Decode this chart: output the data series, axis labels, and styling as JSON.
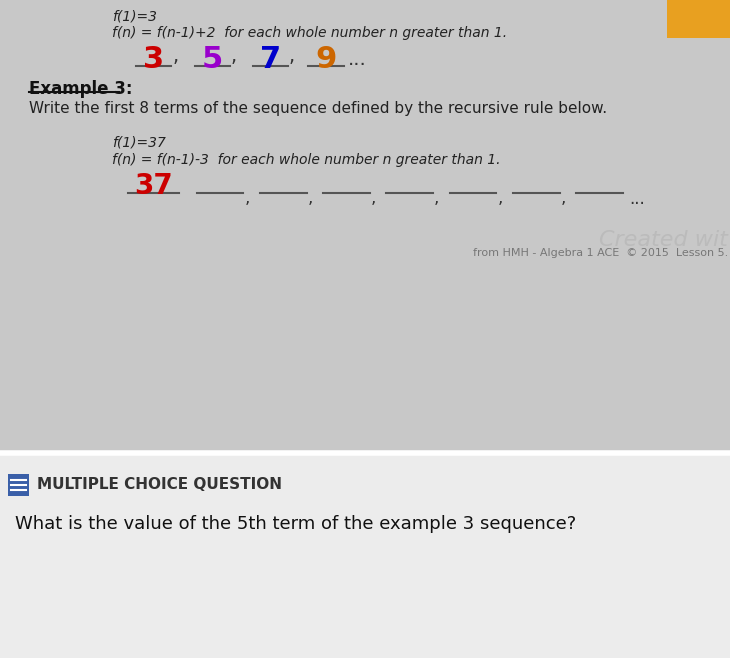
{
  "top_section_bg": "#c8c8c8",
  "bottom_section_bg": "#ececec",
  "divider_color": "#ffffff",
  "top_line1": "f(1)=3",
  "top_line2": "f(n) = f(n-1)+2  for each whole number n greater than 1.",
  "sequence_numbers": [
    "3",
    "5",
    "7",
    "9"
  ],
  "sequence_colors": [
    "#cc0000",
    "#9900cc",
    "#0000cc",
    "#cc6600"
  ],
  "example_header": "Example 3:",
  "example_desc": "Write the first 8 terms of the sequence defined by the recursive rule below.",
  "ex3_line1": "f(1)=37",
  "ex3_line2": "f(n) = f(n-1)-3  for each whole number n greater than 1.",
  "ex3_first_term": "37",
  "ex3_first_term_color": "#cc0000",
  "created_text": "Created wit",
  "source_text": "from HMH - Algebra 1 ACE  © 2015  Lesson 5.",
  "mc_icon_color": "#3a5fa8",
  "mc_text": "MULTIPLE CHOICE QUESTION",
  "question_text": "What is the value of the 5th term of the example 3 sequence?",
  "orange_square_color": "#e8a020",
  "blank_line_color": "#555555"
}
